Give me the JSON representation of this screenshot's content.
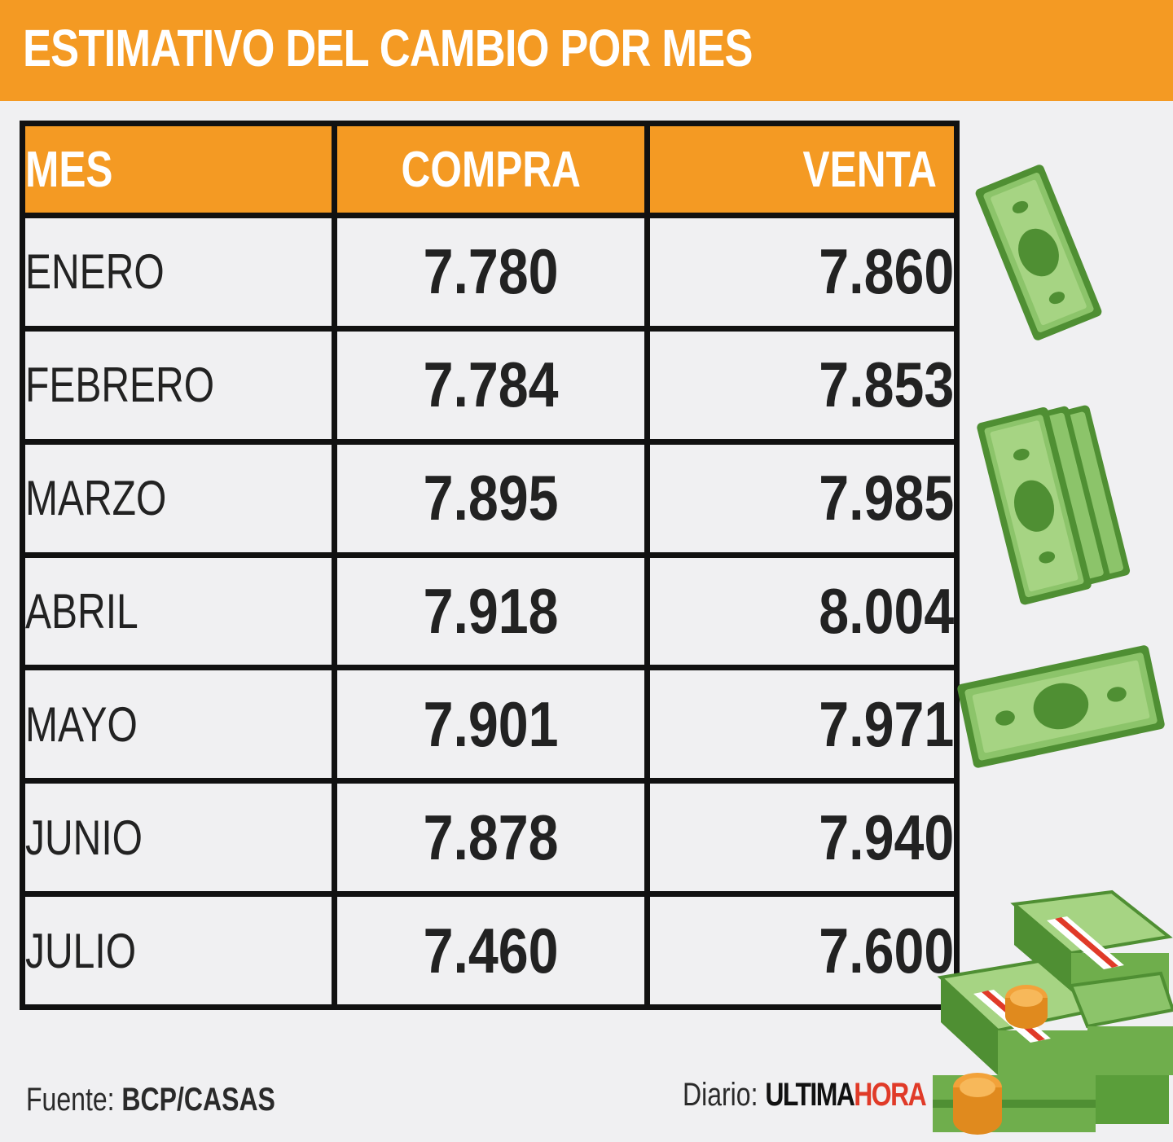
{
  "title": "ESTIMATIVO DEL CAMBIO POR MES",
  "table": {
    "headers": {
      "mes": "MES",
      "compra": "COMPRA",
      "venta": "VENTA"
    },
    "rows": [
      {
        "mes": "ENERO",
        "compra": "7.780",
        "venta": "7.860"
      },
      {
        "mes": "FEBRERO",
        "compra": "7.784",
        "venta": "7.853"
      },
      {
        "mes": "MARZO",
        "compra": "7.895",
        "venta": "7.985"
      },
      {
        "mes": "ABRIL",
        "compra": "7.918",
        "venta": "8.004"
      },
      {
        "mes": "MAYO",
        "compra": "7.901",
        "venta": "7.971"
      },
      {
        "mes": "JUNIO",
        "compra": "7.878",
        "venta": "7.940"
      },
      {
        "mes": "JULIO",
        "compra": "7.460",
        "venta": "7.600"
      }
    ]
  },
  "footer": {
    "source_label": "Fuente:",
    "source_value": "BCP/CASAS",
    "brand_label": "Diario:",
    "brand_part1": "ULTIMA",
    "brand_part2": "HORA"
  },
  "colors": {
    "accent": "#f49a23",
    "brand_red": "#e03a28",
    "money_green": "#5a9e3a"
  },
  "icons": [
    "banknote-icon",
    "banknote-stack-icon",
    "banknote-icon",
    "money-pile-icon"
  ]
}
